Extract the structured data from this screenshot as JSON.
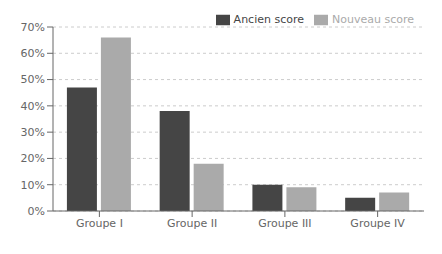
{
  "chart_data": {
    "type": "bar",
    "categories": [
      "Groupe I",
      "Groupe II",
      "Groupe III",
      "Groupe IV"
    ],
    "series": [
      {
        "name": "Ancien score",
        "color": "#454545",
        "values": [
          47,
          38,
          10,
          5
        ]
      },
      {
        "name": "Nouveau score",
        "color": "#aaaaaa",
        "values": [
          66,
          18,
          9,
          7
        ]
      }
    ],
    "ylim": [
      0,
      70
    ],
    "yticks": [
      {
        "value": 0,
        "label": "0%"
      },
      {
        "value": 10,
        "label": "10%"
      },
      {
        "value": 20,
        "label": "20%"
      },
      {
        "value": 30,
        "label": "30%"
      },
      {
        "value": 40,
        "label": "40%"
      },
      {
        "value": 50,
        "label": "50%"
      },
      {
        "value": 60,
        "label": "60%"
      },
      {
        "value": 70,
        "label": "70%"
      }
    ],
    "grid": true,
    "legend": "upper right"
  }
}
